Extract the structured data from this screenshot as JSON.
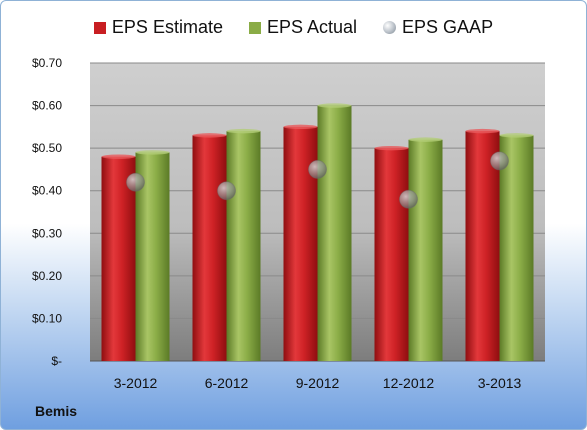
{
  "chart_data": {
    "type": "bar",
    "categories": [
      "3-2012",
      "6-2012",
      "9-2012",
      "12-2012",
      "3-2013"
    ],
    "series": [
      {
        "name": "EPS Estimate",
        "values": [
          0.48,
          0.53,
          0.55,
          0.5,
          0.54
        ],
        "color": "#c81e22"
      },
      {
        "name": "EPS Actual",
        "values": [
          0.49,
          0.54,
          0.6,
          0.52,
          0.53
        ],
        "color": "#8aac46"
      },
      {
        "name": "EPS GAAP",
        "values": [
          0.42,
          0.4,
          0.45,
          0.38,
          0.47
        ],
        "color": "#a9b1ba",
        "style": "marker"
      }
    ],
    "ylim": [
      0,
      0.7
    ],
    "yticks": [
      0,
      0.1,
      0.2,
      0.3,
      0.4,
      0.5,
      0.6,
      0.7
    ],
    "ytick_labels": [
      "$-",
      "$0.10",
      "$0.20",
      "$0.30",
      "$0.40",
      "$0.50",
      "$0.60",
      "$0.70"
    ],
    "legend_position": "top",
    "grid": true,
    "company": "Bemis"
  }
}
